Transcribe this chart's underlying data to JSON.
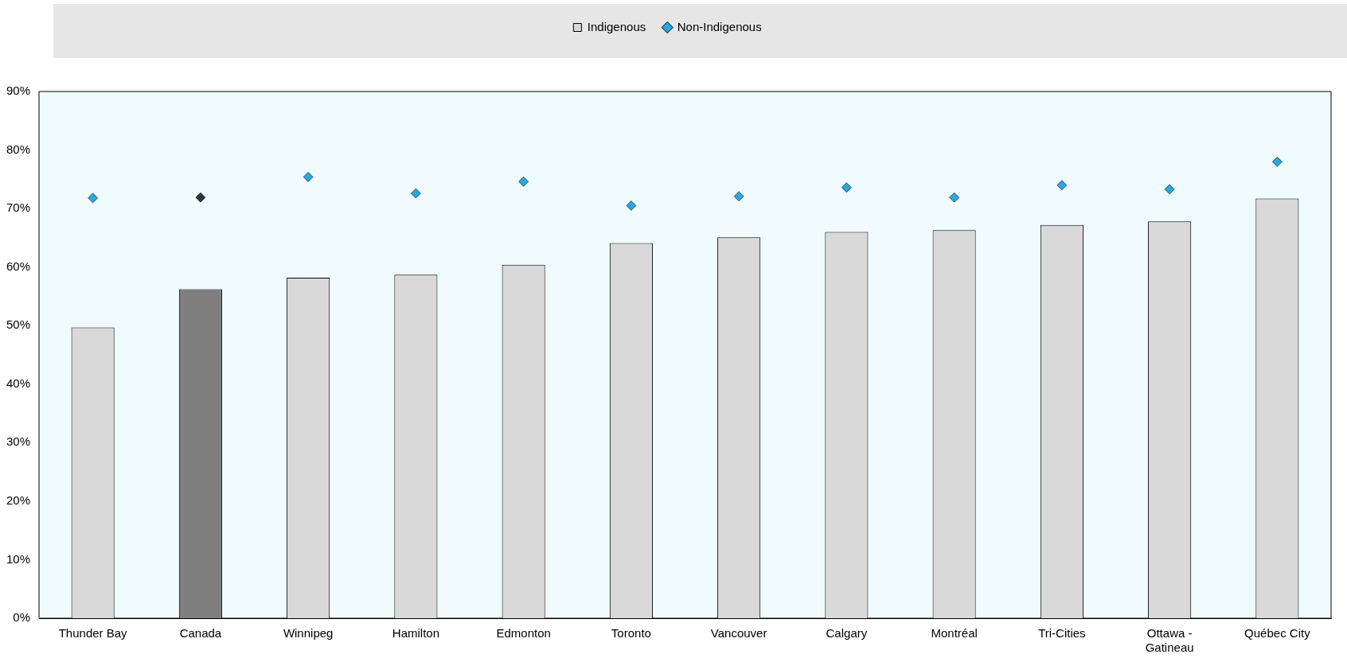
{
  "chart_data": {
    "type": "bar",
    "categories": [
      "Thunder Bay",
      "Canada",
      "Winnipeg",
      "Hamilton",
      "Edmonton",
      "Toronto",
      "Vancouver",
      "Calgary",
      "Montréal",
      "Tri-Cities",
      "Ottawa - Gatineau",
      "Québec City"
    ],
    "series": [
      {
        "name": "Indigenous",
        "color": "#d9d9d9",
        "colors": [
          "#d9d9d9",
          "#7f7f7f",
          "#d9d9d9",
          "#d9d9d9",
          "#d9d9d9",
          "#d9d9d9",
          "#d9d9d9",
          "#d9d9d9",
          "#d9d9d9",
          "#d9d9d9",
          "#d9d9d9",
          "#d9d9d9"
        ],
        "values": [
          49.7,
          56.2,
          58.2,
          58.7,
          60.4,
          64.1,
          65.1,
          66.0,
          66.3,
          67.2,
          67.8,
          71.7
        ]
      },
      {
        "name": "Non-Indigenous",
        "type": "scatter",
        "marker": "diamond",
        "x": [
          "Thunder Bay",
          "Canada",
          "Winnipeg",
          "Hamilton",
          "Edmonton",
          "Toronto",
          "Vancouver",
          "Calgary",
          "Montréal",
          "Tri-Cities",
          "Ottawa - Gatineau",
          "Québec City"
        ],
        "color": "#29a8e0",
        "colors": [
          "#29a8e0",
          "#1f3a4d",
          "#29a8e0",
          "#29a8e0",
          "#29a8e0",
          "#29a8e0",
          "#29a8e0",
          "#29a8e0",
          "#29a8e0",
          "#29a8e0",
          "#29a8e0",
          "#29a8e0"
        ],
        "values": [
          71.8,
          71.9,
          75.4,
          72.6,
          74.6,
          70.5,
          72.1,
          73.6,
          71.9,
          74.0,
          73.3,
          78.0
        ]
      }
    ],
    "ylim": [
      0,
      90
    ],
    "yticks": [
      {
        "value": 0,
        "label": "0%"
      },
      {
        "value": 10,
        "label": "10%"
      },
      {
        "value": 20,
        "label": "20%"
      },
      {
        "value": 30,
        "label": "30%"
      },
      {
        "value": 40,
        "label": "40%"
      },
      {
        "value": 50,
        "label": "50%"
      },
      {
        "value": 60,
        "label": "60%"
      },
      {
        "value": 70,
        "label": "70%"
      },
      {
        "value": 80,
        "label": "80%"
      },
      {
        "value": 90,
        "label": "90%"
      }
    ],
    "grid": false,
    "legend": "top"
  }
}
